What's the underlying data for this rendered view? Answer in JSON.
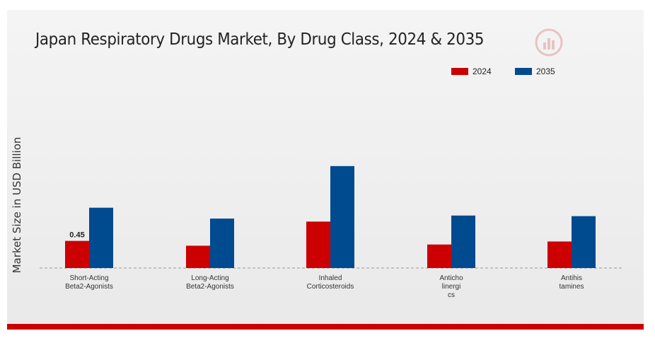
{
  "chart_data": {
    "type": "bar",
    "title": "Japan Respiratory Drugs Market, By Drug Class, 2024 & 2035",
    "ylabel": "Market Size in USD Billion",
    "xlabel": "",
    "ylim": [
      0,
      2.0
    ],
    "categories": [
      [
        "Short-Acting",
        "Beta2-Agonists"
      ],
      [
        "Long-Acting",
        "Beta2-Agonists"
      ],
      [
        "Inhaled",
        "Corticosteroids"
      ],
      [
        "Anticho",
        "linergi",
        "cs"
      ],
      [
        "Antihis",
        "tamines"
      ]
    ],
    "series": [
      {
        "name": "2024",
        "color": "#cc0000",
        "values": [
          0.45,
          0.37,
          0.77,
          0.39,
          0.44
        ]
      },
      {
        "name": "2035",
        "color": "#004a8f",
        "values": [
          1.0,
          0.82,
          1.69,
          0.87,
          0.86
        ]
      }
    ],
    "data_labels": [
      {
        "series": 0,
        "index": 0,
        "text": "0.45"
      }
    ],
    "legend_position": "top-right",
    "grid": false
  }
}
